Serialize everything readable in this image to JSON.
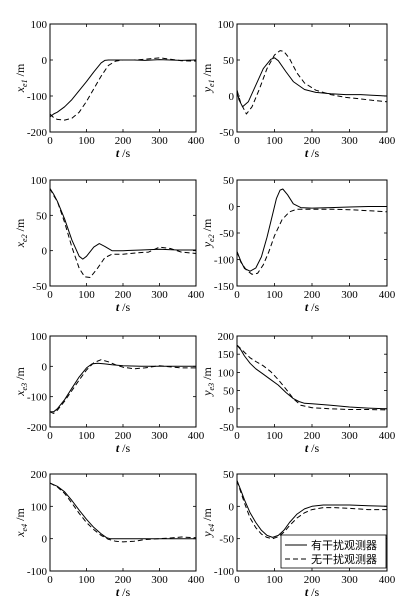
{
  "chart_data": [
    {
      "type": "line",
      "ylabel_main": "x",
      "ylabel_sub": "e1",
      "ylabel_unit": "/m",
      "xlabel_main": "t",
      "xlabel_unit": "/s",
      "xlim": [
        0,
        400
      ],
      "ylim": [
        -200,
        100
      ],
      "xticks": [
        0,
        100,
        200,
        300,
        400
      ],
      "yticks": [
        -200,
        -100,
        0,
        100
      ],
      "series": [
        {
          "name": "有干扰观测器",
          "style": "solid",
          "x": [
            0,
            10,
            20,
            40,
            60,
            80,
            100,
            120,
            140,
            150,
            160,
            180,
            200,
            230,
            260,
            300,
            330,
            360,
            400
          ],
          "y": [
            -158,
            -150,
            -145,
            -130,
            -110,
            -85,
            -60,
            -33,
            -8,
            -1,
            0,
            0,
            0,
            0,
            -1,
            1,
            0,
            -1,
            0
          ]
        },
        {
          "name": "无干扰观测器",
          "style": "dashed",
          "x": [
            0,
            10,
            20,
            40,
            60,
            80,
            100,
            120,
            140,
            160,
            180,
            200,
            230,
            260,
            300,
            330,
            360,
            400
          ],
          "y": [
            -150,
            -160,
            -165,
            -167,
            -162,
            -145,
            -115,
            -80,
            -45,
            -15,
            -3,
            0,
            0,
            2,
            6,
            2,
            -2,
            -3
          ]
        }
      ]
    },
    {
      "type": "line",
      "ylabel_main": "y",
      "ylabel_sub": "e1",
      "ylabel_unit": "/m",
      "xlabel_main": "t",
      "xlabel_unit": "/s",
      "xlim": [
        0,
        400
      ],
      "ylim": [
        -50,
        100
      ],
      "xticks": [
        0,
        100,
        200,
        300,
        400
      ],
      "yticks": [
        -50,
        0,
        50,
        100
      ],
      "series": [
        {
          "name": "有干扰观测器",
          "style": "solid",
          "x": [
            0,
            5,
            15,
            30,
            50,
            70,
            90,
            100,
            110,
            130,
            150,
            180,
            210,
            250,
            290,
            330,
            360,
            400
          ],
          "y": [
            8,
            -5,
            -15,
            -8,
            15,
            38,
            51,
            53,
            49,
            34,
            20,
            9,
            5,
            3,
            2,
            2,
            1,
            0
          ]
        },
        {
          "name": "无干扰观测器",
          "style": "dashed",
          "x": [
            0,
            10,
            25,
            40,
            60,
            80,
            100,
            115,
            125,
            140,
            160,
            180,
            210,
            250,
            290,
            330,
            360,
            400
          ],
          "y": [
            8,
            -10,
            -25,
            -15,
            10,
            38,
            57,
            63,
            62,
            52,
            32,
            18,
            8,
            2,
            -2,
            -4,
            -6,
            -8
          ]
        }
      ]
    },
    {
      "type": "line",
      "ylabel_main": "x",
      "ylabel_sub": "e2",
      "ylabel_unit": "/m",
      "xlabel_main": "t",
      "xlabel_unit": "/s",
      "xlim": [
        0,
        400
      ],
      "ylim": [
        -50,
        100
      ],
      "xticks": [
        0,
        100,
        200,
        300,
        400
      ],
      "yticks": [
        -50,
        0,
        50,
        100
      ],
      "series": [
        {
          "name": "有干扰观测器",
          "style": "solid",
          "x": [
            0,
            10,
            20,
            40,
            60,
            80,
            90,
            100,
            120,
            135,
            150,
            170,
            200,
            250,
            300,
            350,
            400
          ],
          "y": [
            88,
            80,
            70,
            45,
            15,
            -8,
            -12,
            -8,
            5,
            10,
            6,
            0,
            0,
            1,
            2,
            1,
            1
          ]
        },
        {
          "name": "无干扰观测器",
          "style": "dashed",
          "x": [
            0,
            10,
            20,
            40,
            60,
            80,
            95,
            110,
            130,
            150,
            170,
            200,
            240,
            270,
            300,
            330,
            360,
            400
          ],
          "y": [
            88,
            78,
            70,
            40,
            5,
            -25,
            -37,
            -38,
            -25,
            -10,
            -5,
            -5,
            -3,
            -2,
            5,
            3,
            -2,
            -4
          ]
        }
      ]
    },
    {
      "type": "line",
      "ylabel_main": "y",
      "ylabel_sub": "e2",
      "ylabel_unit": "/m",
      "xlabel_main": "t",
      "xlabel_unit": "/s",
      "xlim": [
        0,
        400
      ],
      "ylim": [
        -150,
        50
      ],
      "xticks": [
        0,
        100,
        200,
        300,
        400
      ],
      "yticks": [
        -150,
        -100,
        -50,
        0,
        50
      ],
      "series": [
        {
          "name": "有干扰观测器",
          "style": "solid",
          "x": [
            0,
            10,
            20,
            35,
            50,
            65,
            80,
            95,
            105,
            115,
            122,
            135,
            150,
            170,
            200,
            250,
            300,
            350,
            400
          ],
          "y": [
            -85,
            -103,
            -117,
            -122,
            -116,
            -95,
            -58,
            -15,
            15,
            31,
            33,
            22,
            5,
            -2,
            -3,
            -2,
            -1,
            0,
            0
          ]
        },
        {
          "name": "无干扰观测器",
          "style": "dashed",
          "x": [
            0,
            10,
            25,
            40,
            55,
            70,
            85,
            100,
            120,
            140,
            160,
            180,
            200,
            250,
            300,
            350,
            400
          ],
          "y": [
            -85,
            -105,
            -120,
            -128,
            -126,
            -110,
            -85,
            -55,
            -25,
            -10,
            -5,
            -5,
            -5,
            -5,
            -6,
            -8,
            -10
          ]
        }
      ]
    },
    {
      "type": "line",
      "ylabel_main": "x",
      "ylabel_sub": "e3",
      "ylabel_unit": "/m",
      "xlabel_main": "t",
      "xlabel_unit": "/s",
      "xlim": [
        0,
        400
      ],
      "ylim": [
        -200,
        100
      ],
      "xticks": [
        0,
        100,
        200,
        300,
        400
      ],
      "yticks": [
        -200,
        -100,
        0,
        100
      ],
      "series": [
        {
          "name": "有干扰观测器",
          "style": "solid",
          "x": [
            0,
            10,
            20,
            40,
            60,
            80,
            100,
            115,
            130,
            150,
            170,
            200,
            250,
            300,
            350,
            400
          ],
          "y": [
            -150,
            -150,
            -140,
            -110,
            -72,
            -35,
            -5,
            8,
            10,
            8,
            5,
            2,
            0,
            0,
            0,
            0
          ]
        },
        {
          "name": "无干扰观测器",
          "style": "dashed",
          "x": [
            0,
            10,
            20,
            40,
            60,
            80,
            100,
            120,
            140,
            160,
            180,
            200,
            230,
            260,
            300,
            330,
            360,
            400
          ],
          "y": [
            -150,
            -155,
            -145,
            -115,
            -80,
            -45,
            -12,
            12,
            22,
            15,
            5,
            -3,
            -8,
            -5,
            2,
            -2,
            -5,
            -5
          ]
        }
      ]
    },
    {
      "type": "line",
      "ylabel_main": "y",
      "ylabel_sub": "e3",
      "ylabel_unit": "/m",
      "xlabel_main": "t",
      "xlabel_unit": "/s",
      "xlim": [
        0,
        400
      ],
      "ylim": [
        -50,
        200
      ],
      "xticks": [
        0,
        100,
        200,
        300,
        400
      ],
      "yticks": [
        -50,
        0,
        50,
        100,
        150,
        200
      ],
      "series": [
        {
          "name": "有干扰观测器",
          "style": "solid",
          "x": [
            0,
            10,
            20,
            35,
            50,
            70,
            90,
            110,
            130,
            150,
            165,
            180,
            200,
            250,
            300,
            350,
            400
          ],
          "y": [
            175,
            162,
            145,
            125,
            110,
            95,
            80,
            65,
            45,
            28,
            20,
            15,
            14,
            10,
            5,
            2,
            0
          ]
        },
        {
          "name": "无干扰观测器",
          "style": "dashed",
          "x": [
            0,
            10,
            20,
            35,
            50,
            70,
            90,
            110,
            130,
            150,
            170,
            200,
            250,
            300,
            350,
            400
          ],
          "y": [
            175,
            165,
            155,
            140,
            130,
            118,
            102,
            80,
            55,
            28,
            10,
            3,
            0,
            -2,
            -2,
            -3
          ]
        }
      ]
    },
    {
      "type": "line",
      "ylabel_main": "x",
      "ylabel_sub": "e4",
      "ylabel_unit": "/m",
      "xlabel_main": "t",
      "xlabel_unit": "/s",
      "xlim": [
        0,
        400
      ],
      "ylim": [
        -100,
        200
      ],
      "xticks": [
        0,
        100,
        200,
        300,
        400
      ],
      "yticks": [
        -100,
        0,
        100,
        200
      ],
      "series": [
        {
          "name": "有干扰观测器",
          "style": "solid",
          "x": [
            0,
            20,
            40,
            60,
            80,
            100,
            120,
            140,
            155,
            165,
            180,
            200,
            250,
            300,
            350,
            400
          ],
          "y": [
            172,
            162,
            145,
            118,
            88,
            60,
            35,
            15,
            3,
            0,
            0,
            0,
            0,
            0,
            0,
            0
          ]
        },
        {
          "name": "无干扰观测器",
          "style": "dashed",
          "x": [
            0,
            20,
            40,
            60,
            80,
            100,
            120,
            140,
            160,
            180,
            200,
            230,
            260,
            300,
            330,
            360,
            400
          ],
          "y": [
            172,
            160,
            140,
            110,
            78,
            50,
            28,
            10,
            -2,
            -8,
            -10,
            -8,
            -3,
            0,
            2,
            5,
            3
          ]
        }
      ]
    },
    {
      "type": "line",
      "ylabel_main": "y",
      "ylabel_sub": "e4",
      "ylabel_unit": "/m",
      "xlabel_main": "t",
      "xlabel_unit": "/s",
      "xlim": [
        0,
        400
      ],
      "ylim": [
        -100,
        50
      ],
      "xticks": [
        0,
        100,
        200,
        300,
        400
      ],
      "yticks": [
        -100,
        -50,
        0,
        50
      ],
      "series": [
        {
          "name": "有干扰观测器",
          "style": "solid",
          "x": [
            0,
            10,
            20,
            35,
            50,
            65,
            80,
            95,
            110,
            125,
            140,
            160,
            180,
            200,
            230,
            260,
            300,
            350,
            400
          ],
          "y": [
            40,
            25,
            10,
            -10,
            -25,
            -37,
            -45,
            -48,
            -45,
            -37,
            -25,
            -12,
            -4,
            0,
            2,
            2,
            2,
            1,
            0
          ]
        },
        {
          "name": "无干扰观测器",
          "style": "dashed",
          "x": [
            0,
            10,
            20,
            35,
            50,
            65,
            80,
            95,
            110,
            125,
            140,
            160,
            180,
            200,
            230,
            260,
            300,
            350,
            400
          ],
          "y": [
            40,
            22,
            5,
            -18,
            -33,
            -43,
            -48,
            -50,
            -47,
            -40,
            -30,
            -18,
            -10,
            -5,
            -2,
            -2,
            -3,
            -5,
            -5
          ]
        }
      ]
    }
  ],
  "legend": {
    "position": "bottom-right of last panel",
    "entries": [
      {
        "label": "有干扰观测器",
        "style": "solid"
      },
      {
        "label": "无干扰观测器",
        "style": "dashed"
      }
    ]
  }
}
